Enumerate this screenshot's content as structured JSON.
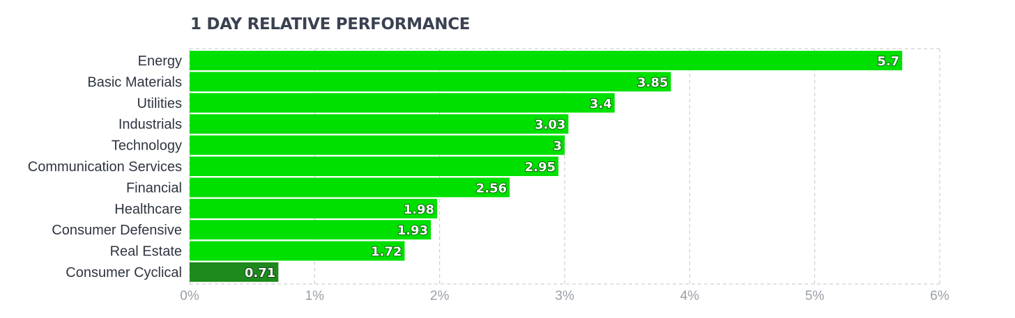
{
  "chart_data": {
    "type": "bar",
    "orientation": "horizontal",
    "title": "1 DAY RELATIVE PERFORMANCE",
    "categories": [
      "Energy",
      "Basic Materials",
      "Utilities",
      "Industrials",
      "Technology",
      "Communication Services",
      "Financial",
      "Healthcare",
      "Consumer Defensive",
      "Real Estate",
      "Consumer Cyclical"
    ],
    "values": [
      5.7,
      3.85,
      3.4,
      3.03,
      3,
      2.95,
      2.56,
      1.98,
      1.93,
      1.72,
      0.71
    ],
    "value_labels": [
      "5.7",
      "3.85",
      "3.4",
      "3.03",
      "3",
      "2.95",
      "2.56",
      "1.98",
      "1.93",
      "1.72",
      "0.71"
    ],
    "bar_colors": [
      "#00e000",
      "#00e000",
      "#00e000",
      "#00e000",
      "#00e000",
      "#00e000",
      "#00e000",
      "#00e000",
      "#00e000",
      "#00e000",
      "#1e8a1e"
    ],
    "xlim": [
      0,
      6
    ],
    "xticks": [
      0,
      1,
      2,
      3,
      4,
      5,
      6
    ],
    "xtick_labels": [
      "0%",
      "1%",
      "2%",
      "3%",
      "4%",
      "5%",
      "6%"
    ],
    "xlabel": "",
    "ylabel": "",
    "grid": true,
    "legend": "none"
  }
}
